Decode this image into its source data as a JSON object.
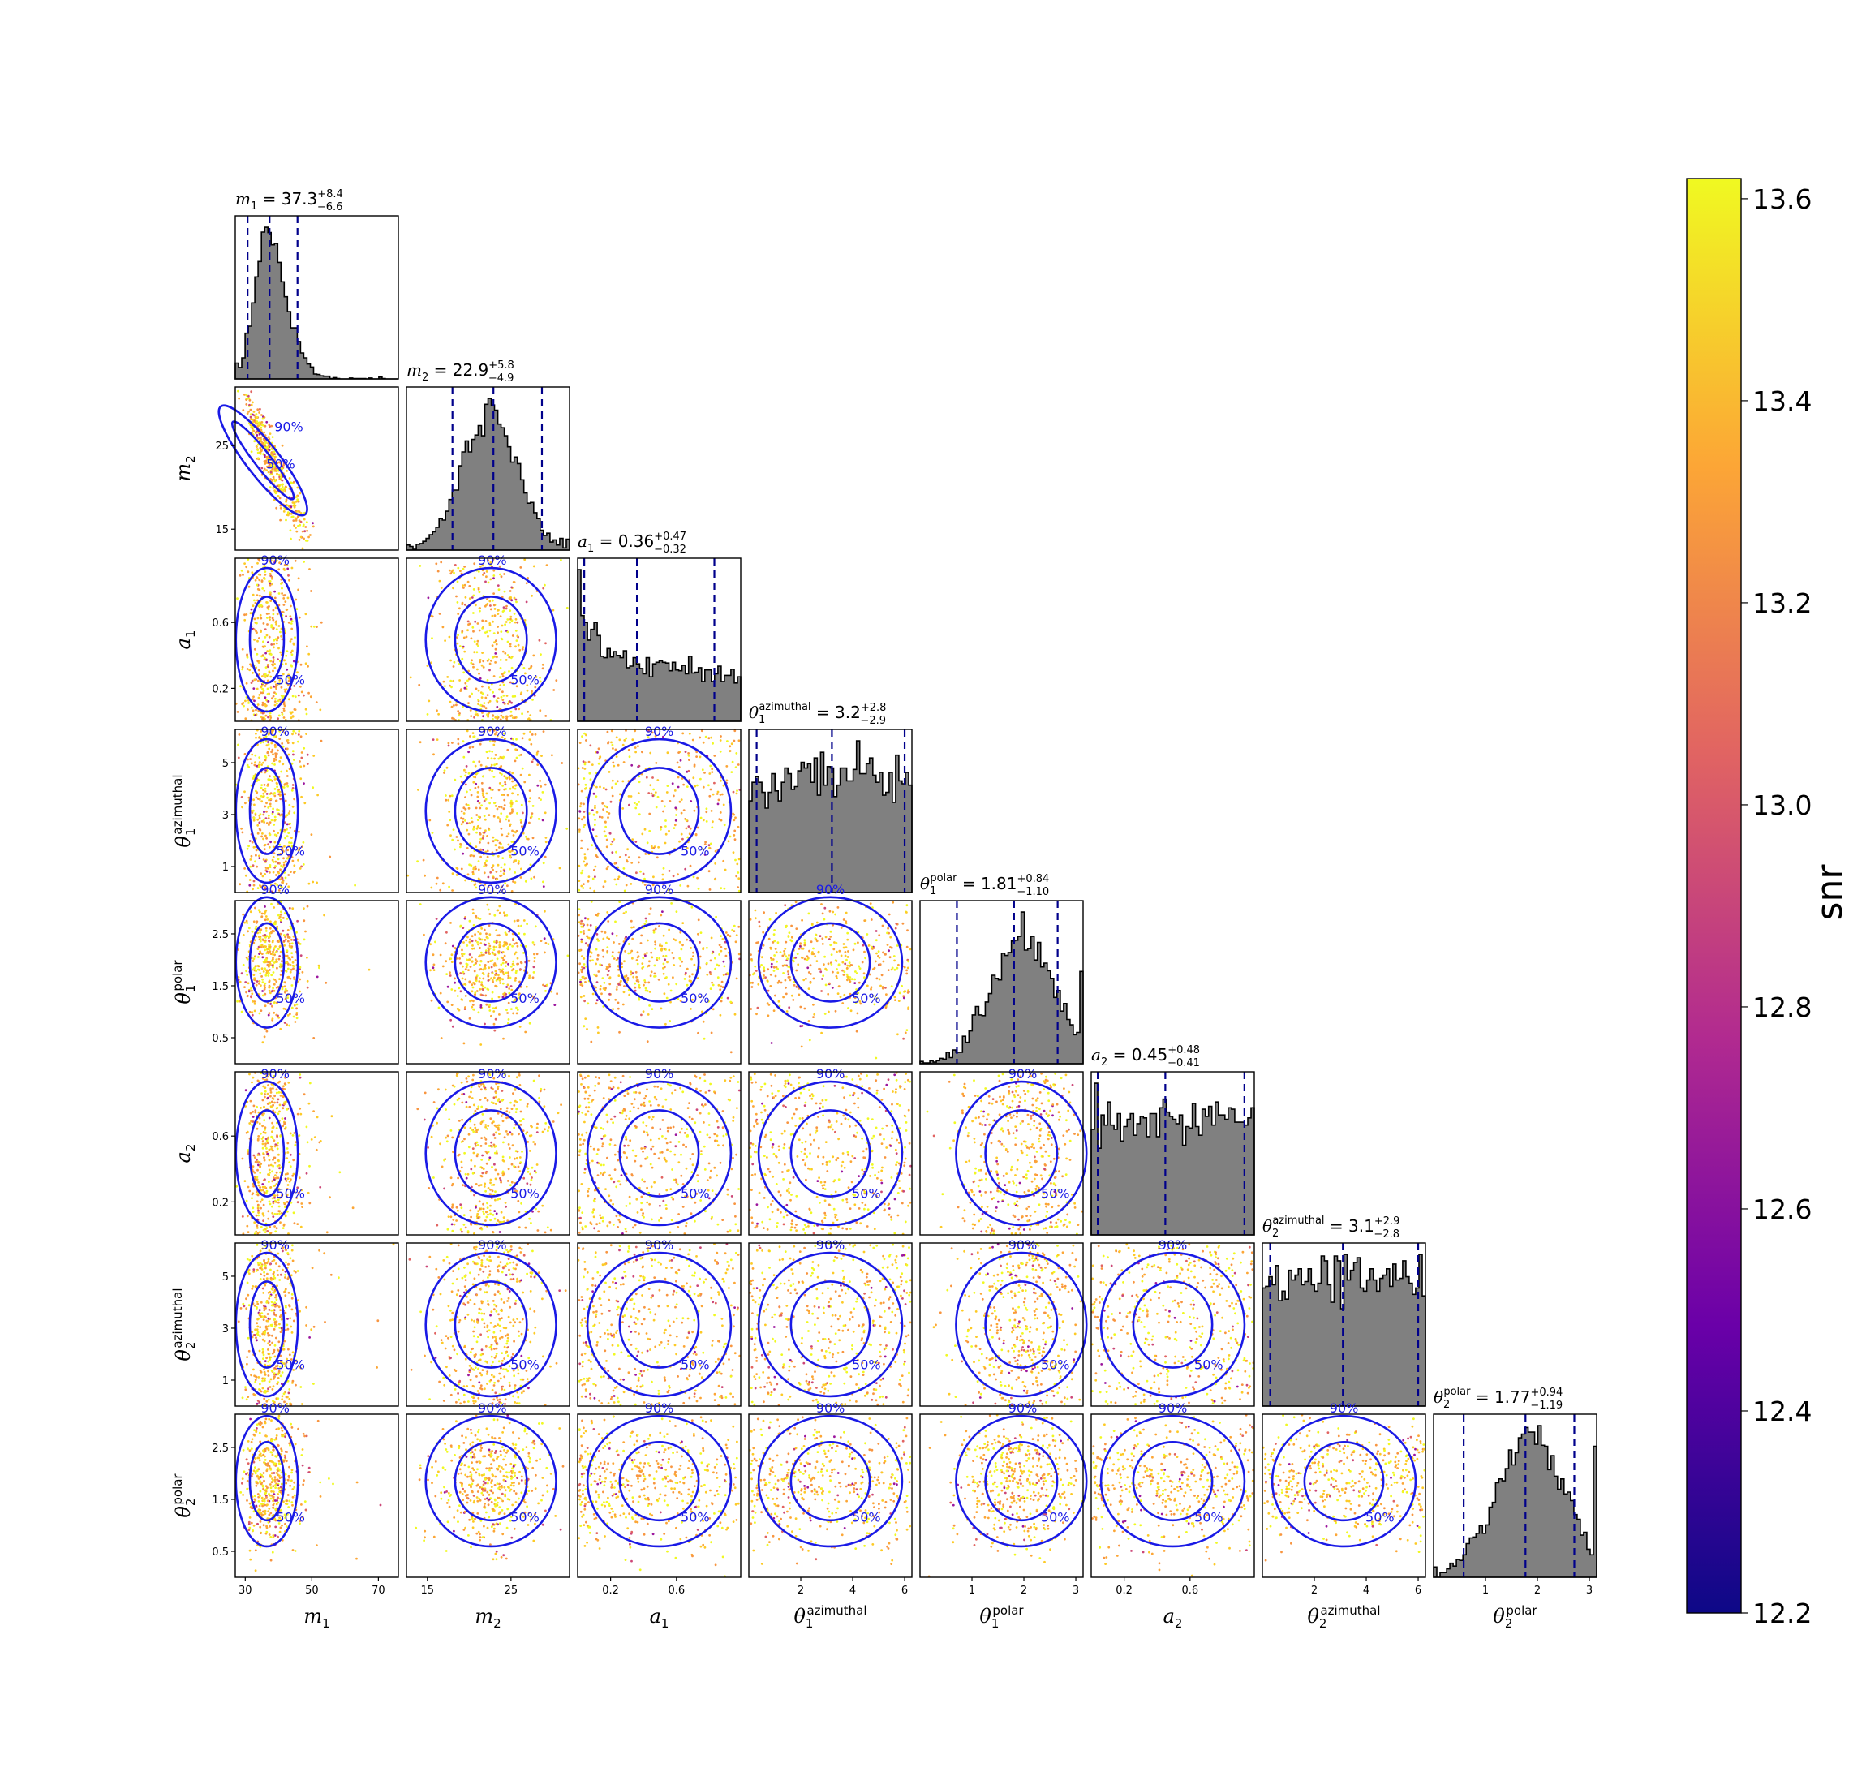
{
  "figure": {
    "type": "corner-plot"
  },
  "colorbar": {
    "label": "snr",
    "min": 12.2,
    "max": 13.62,
    "ticks": [
      "12.2",
      "12.4",
      "12.6",
      "12.8",
      "13.0",
      "13.2",
      "13.4",
      "13.6"
    ],
    "colormap": [
      "#0d0887",
      "#6a00a8",
      "#b12a90",
      "#e16462",
      "#fca636",
      "#f0f921"
    ]
  },
  "chart_data": {
    "type": "corner",
    "colors": {
      "histogram": "#808080",
      "quantile_line": "#00008b",
      "contour": "#1a1ae6"
    },
    "contour_levels": [
      "50%",
      "90%"
    ],
    "parameters": [
      {
        "key": "m1",
        "symbol": "m",
        "sub": "1",
        "sup": "",
        "range": [
          27,
          76
        ],
        "ticks": [
          30,
          50,
          70
        ],
        "tick_labels": [
          "30",
          "50",
          "70"
        ],
        "median": 37.3,
        "plus": "+8.4",
        "minus": "−6.6",
        "title_value": "37.3",
        "hist": {
          "dist": "skew",
          "center": 36.5,
          "width": 4.5,
          "tail": 0.25
        }
      },
      {
        "key": "m2",
        "symbol": "m",
        "sub": "2",
        "sup": "",
        "range": [
          12.5,
          32
        ],
        "ticks": [
          15,
          25
        ],
        "tick_labels": [
          "15",
          "25"
        ],
        "median": 22.9,
        "plus": "+5.8",
        "minus": "−4.9",
        "title_value": "22.9",
        "hist": {
          "dist": "normal",
          "center": 22.6,
          "width": 3.3
        }
      },
      {
        "key": "a1",
        "symbol": "a",
        "sub": "1",
        "sup": "",
        "range": [
          0,
          0.99
        ],
        "ticks": [
          0.2,
          0.6
        ],
        "tick_labels": [
          "0.2",
          "0.6"
        ],
        "median": 0.36,
        "plus": "+0.47",
        "minus": "−0.32",
        "title_value": "0.36",
        "hist": {
          "dist": "falling",
          "start": 0.99,
          "end": 0.15
        }
      },
      {
        "key": "theta1_az",
        "symbol": "θ",
        "sub": "1",
        "sup": "azimuthal",
        "range": [
          0,
          6.28
        ],
        "ticks": [
          2,
          4,
          6
        ],
        "tick_labels": [
          "2",
          "4",
          "6"
        ],
        "median": 3.2,
        "plus": "+2.8",
        "minus": "−2.9",
        "title_value": "3.2",
        "hist": {
          "dist": "uniform",
          "level": 0.78
        }
      },
      {
        "key": "theta1_pol",
        "symbol": "θ",
        "sub": "1",
        "sup": "polar",
        "range": [
          0,
          3.14
        ],
        "ticks": [
          1,
          2,
          3
        ],
        "tick_labels": [
          "1",
          "2",
          "3"
        ],
        "median": 1.81,
        "plus": "+0.84",
        "minus": "−1.10",
        "title_value": "1.81",
        "hist": {
          "dist": "normal",
          "center": 1.95,
          "width": 0.6
        }
      },
      {
        "key": "a2",
        "symbol": "a",
        "sub": "2",
        "sup": "",
        "range": [
          0,
          0.99
        ],
        "ticks": [
          0.2,
          0.6
        ],
        "tick_labels": [
          "0.2",
          "0.6"
        ],
        "median": 0.45,
        "plus": "+0.48",
        "minus": "−0.41",
        "title_value": "0.45",
        "hist": {
          "dist": "uniform",
          "level": 0.7
        }
      },
      {
        "key": "theta2_az",
        "symbol": "θ",
        "sub": "2",
        "sup": "azimuthal",
        "range": [
          0,
          6.28
        ],
        "ticks": [
          2,
          4,
          6
        ],
        "tick_labels": [
          "2",
          "4",
          "6"
        ],
        "median": 3.1,
        "plus": "+2.9",
        "minus": "−2.8",
        "title_value": "3.1",
        "hist": {
          "dist": "uniform",
          "level": 0.82
        }
      },
      {
        "key": "theta2_pol",
        "symbol": "θ",
        "sub": "2",
        "sup": "polar",
        "range": [
          0,
          3.14
        ],
        "ticks": [
          1,
          2,
          3
        ],
        "tick_labels": [
          "1",
          "2",
          "3"
        ],
        "median": 1.77,
        "plus": "+0.94",
        "minus": "−1.19",
        "title_value": "1.77",
        "hist": {
          "dist": "normal",
          "center": 1.85,
          "width": 0.65
        }
      }
    ],
    "y_tick_overrides": {
      "m2": {
        "ticks": [
          15,
          25
        ],
        "labels": [
          "15",
          "25"
        ]
      },
      "a1": {
        "ticks": [
          0.2,
          0.6
        ],
        "labels": [
          "0.2",
          "0.6"
        ]
      },
      "theta1_az": {
        "ticks": [
          1,
          3,
          5
        ],
        "labels": [
          "1",
          "3",
          "5"
        ]
      },
      "theta1_pol": {
        "ticks": [
          0.5,
          1.5,
          2.5
        ],
        "labels": [
          "0.5",
          "1.5",
          "2.5"
        ]
      },
      "a2": {
        "ticks": [
          0.2,
          0.6
        ],
        "labels": [
          "0.2",
          "0.6"
        ]
      },
      "theta2_az": {
        "ticks": [
          1,
          3,
          5
        ],
        "labels": [
          "1",
          "3",
          "5"
        ]
      },
      "theta2_pol": {
        "ticks": [
          0.5,
          1.5,
          2.5
        ],
        "labels": [
          "0.5",
          "1.5",
          "2.5"
        ]
      }
    }
  }
}
